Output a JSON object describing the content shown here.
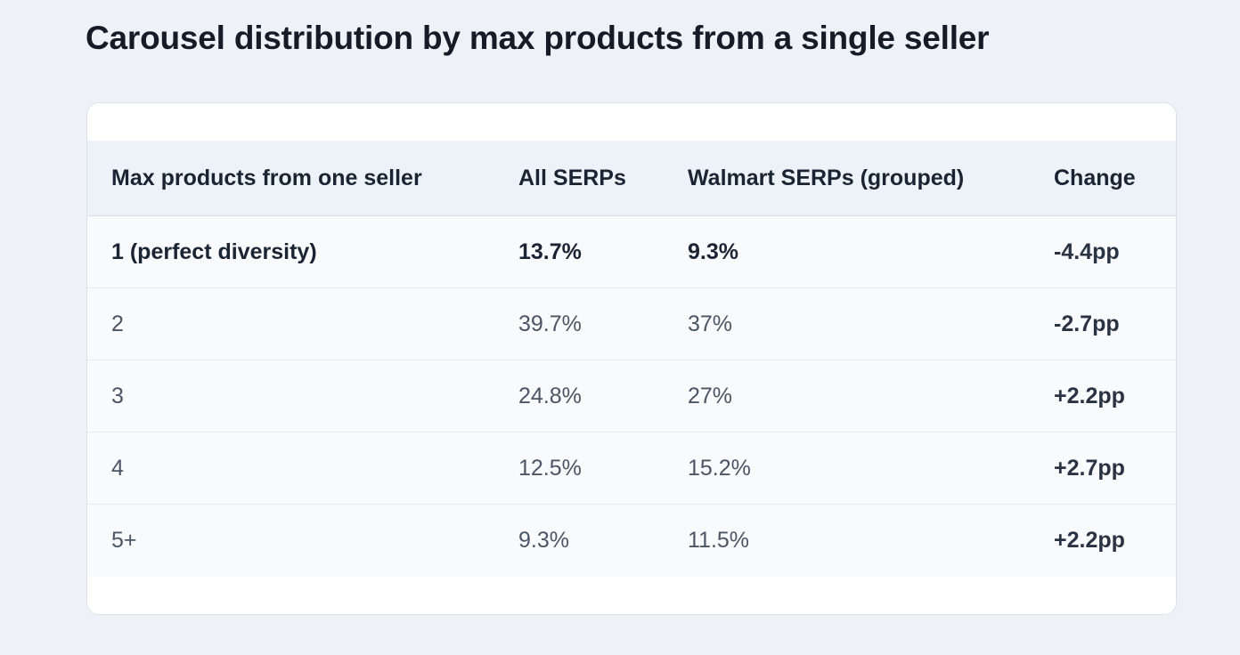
{
  "title": "Carousel distribution by max products from a single seller",
  "table": {
    "headers": [
      "Max products from one seller",
      "All SERPs",
      "Walmart SERPs (grouped)",
      "Change"
    ],
    "rows": [
      [
        "1 (perfect diversity)",
        "13.7%",
        "9.3%",
        "-4.4pp"
      ],
      [
        "2",
        "39.7%",
        "37%",
        "-2.7pp"
      ],
      [
        "3",
        "24.8%",
        "27%",
        "+2.2pp"
      ],
      [
        "4",
        "12.5%",
        "15.2%",
        "+2.7pp"
      ],
      [
        "5+",
        "9.3%",
        "11.5%",
        "+2.2pp"
      ]
    ]
  }
}
